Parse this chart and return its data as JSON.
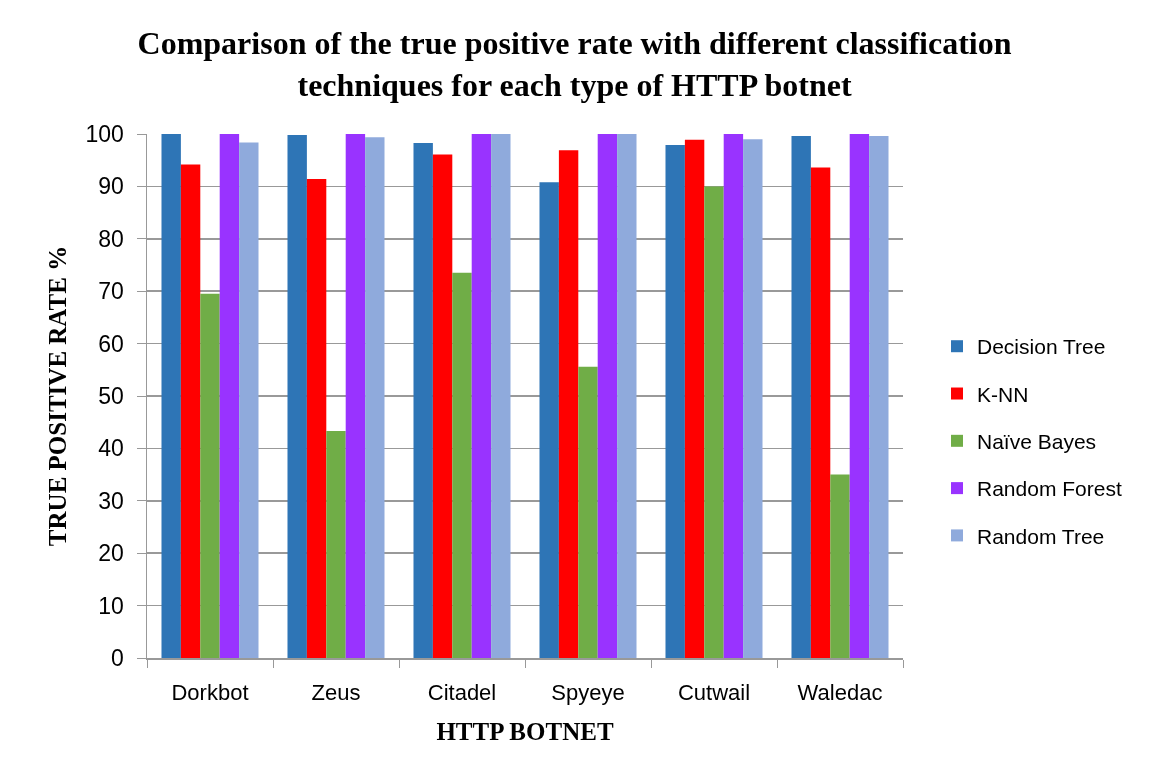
{
  "chart_data": {
    "type": "bar",
    "title": "Comparison of the true positive rate with different classification techniques for each type of HTTP botnet",
    "xlabel": "HTTP BOTNET",
    "ylabel": "TRUE POSITIVE RATE %",
    "categories": [
      "Dorkbot",
      "Zeus",
      "Citadel",
      "Spyeye",
      "Cutwail",
      "Waledac"
    ],
    "series": [
      {
        "name": "Decision Tree",
        "color": "#2e75b6",
        "values": [
          100,
          99.8,
          98.3,
          90.8,
          97.9,
          99.6
        ]
      },
      {
        "name": "K-NN",
        "color": "#ff0000",
        "values": [
          94.2,
          91.4,
          96.1,
          96.9,
          98.9,
          93.6
        ]
      },
      {
        "name": "Naïve Bayes",
        "color": "#70ad47",
        "values": [
          69.5,
          43.3,
          73.5,
          55.6,
          90.0,
          35.0
        ]
      },
      {
        "name": "Random Forest",
        "color": "#9933ff",
        "values": [
          100,
          100,
          100,
          100,
          100,
          100
        ]
      },
      {
        "name": "Random Tree",
        "color": "#8faadc",
        "values": [
          98.4,
          99.4,
          100,
          100,
          99.0,
          99.6
        ]
      }
    ],
    "ylim": [
      0,
      100
    ],
    "yticks": [
      0,
      10,
      20,
      30,
      40,
      50,
      60,
      70,
      80,
      90,
      100
    ],
    "grid": "y",
    "legend": "right"
  }
}
